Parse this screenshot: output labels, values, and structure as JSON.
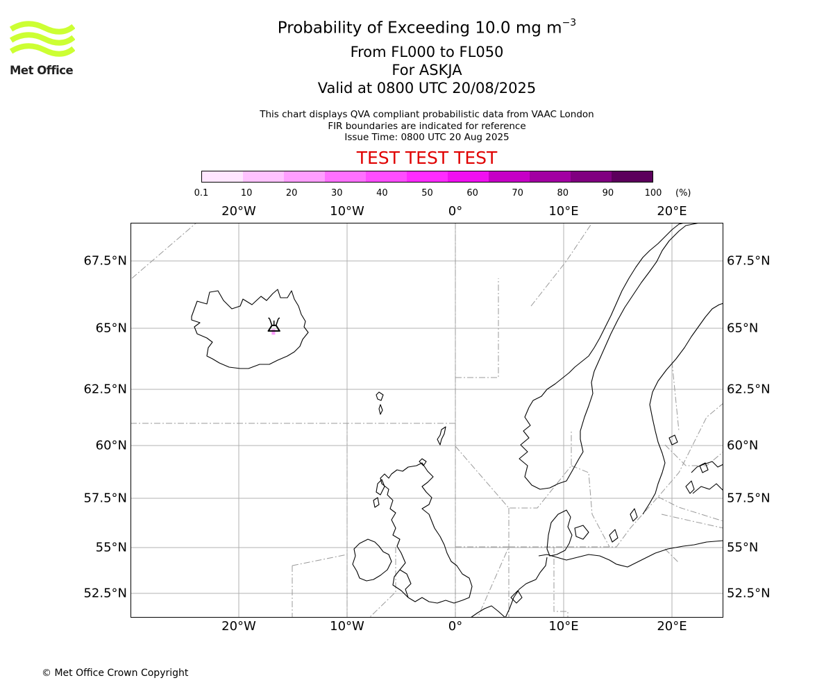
{
  "header": {
    "title_main": "Probability of Exceeding 10.0 mg m",
    "title_exp": "−3",
    "subtitle_levels": "From FL000 to FL050",
    "subtitle_volcano": "For ASKJA",
    "subtitle_valid": "Valid at 0800 UTC 20/08/2025",
    "note_line1": "This chart displays QVA compliant probabilistic data from VAAC London",
    "note_line2": "FIR boundaries are indicated for reference",
    "note_line3": "Issue Time: 0800 UTC 20 Aug 2025",
    "test_banner": "TEST TEST TEST",
    "test_color": "#e00000"
  },
  "logo": {
    "text": "Met Office",
    "icon": "met-office-waves-logo",
    "color": "#ccff33"
  },
  "colorbar": {
    "ticks": [
      "0.1",
      "10",
      "20",
      "30",
      "40",
      "50",
      "60",
      "70",
      "80",
      "90",
      "100"
    ],
    "unit": "(%)",
    "colors": [
      "#ffe6ff",
      "#ffc2ff",
      "#ff9eff",
      "#ff70ff",
      "#ff4dff",
      "#ff2bff",
      "#f010f0",
      "#c600c6",
      "#a200a2",
      "#800080",
      "#5c005c"
    ]
  },
  "axes": {
    "lon_labels": [
      "20°W",
      "10°W",
      "0°",
      "10°E",
      "20°E"
    ],
    "lon_values": [
      -20,
      -10,
      0,
      10,
      20
    ],
    "lat_labels": [
      "67.5°N",
      "65°N",
      "62.5°N",
      "60°N",
      "57.5°N",
      "55°N",
      "52.5°N"
    ],
    "lat_values": [
      67.5,
      65,
      62.5,
      60,
      57.5,
      55,
      52.5
    ],
    "lon_range": [
      -30,
      25
    ],
    "lat_range": [
      51,
      69
    ]
  },
  "chart_data": {
    "type": "map",
    "title": "Probability of Exceeding 10.0 mg m−3",
    "volcano": {
      "name": "ASKJA",
      "lon": -16.75,
      "lat": 65.03,
      "icon": "volcano-icon"
    },
    "probability_cells": [
      {
        "lon": -16.8,
        "lat": 64.85,
        "probability_band": "10-20"
      }
    ],
    "extent": {
      "lon": [
        -30,
        25
      ],
      "lat": [
        51,
        69
      ]
    }
  },
  "footer": {
    "copyright": "© Met Office Crown Copyright"
  }
}
